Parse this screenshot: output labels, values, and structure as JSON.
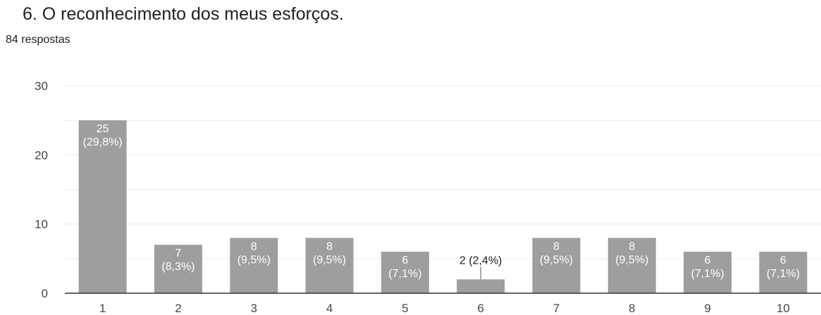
{
  "question": {
    "title": "6. O reconhecimento dos meus esforços.",
    "responses": "84 respostas"
  },
  "colors": {
    "bar": "#9e9e9e",
    "gridline": "#ebebeb",
    "axis_line": "#333333",
    "text": "#202124",
    "inner_label": "#ffffff",
    "callout_line": "#555555"
  },
  "chart_data": {
    "type": "bar",
    "categories": [
      "1",
      "2",
      "3",
      "4",
      "5",
      "6",
      "7",
      "8",
      "9",
      "10"
    ],
    "values": [
      25,
      7,
      8,
      8,
      6,
      2,
      8,
      8,
      6,
      6
    ],
    "data_labels": [
      "25 (29,8%)",
      "7 (8,3%)",
      "8 (9,5%)",
      "8 (9,5%)",
      "6 (7,1%)",
      "2 (2,4%)",
      "8 (9,5%)",
      "8 (9,5%)",
      "6 (7,1%)",
      "6 (7,1%)"
    ],
    "yticks": [
      "0",
      "10",
      "20",
      "30"
    ],
    "ylim": [
      0,
      30
    ],
    "grid": true,
    "legend": "none"
  }
}
